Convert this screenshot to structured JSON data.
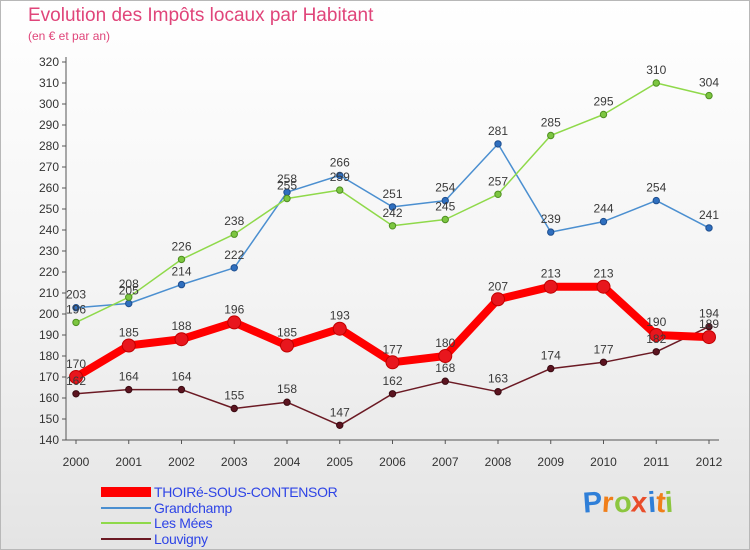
{
  "chart_data": {
    "type": "line",
    "title": "Evolution des Impôts locaux par Habitant",
    "subtitle": "(en € et par an)",
    "x": [
      "2000",
      "2001",
      "2002",
      "2003",
      "2004",
      "2005",
      "2006",
      "2007",
      "2008",
      "2009",
      "2010",
      "2011",
      "2012"
    ],
    "ylim": [
      140,
      320
    ],
    "yticks": [
      140,
      150,
      160,
      170,
      180,
      190,
      200,
      210,
      220,
      230,
      240,
      250,
      260,
      270,
      280,
      290,
      300,
      310,
      320
    ],
    "grid": false,
    "legend_position": "bottom-left",
    "series": [
      {
        "name": "THOIRé-SOUS-CONTENSOR",
        "color": "#ff0000",
        "values": [
          170,
          185,
          188,
          196,
          185,
          193,
          177,
          180,
          207,
          213,
          213,
          190,
          189
        ]
      },
      {
        "name": "Grandchamp",
        "color": "#4b8fd0",
        "values": [
          203,
          205,
          214,
          222,
          258,
          266,
          251,
          254,
          281,
          239,
          244,
          254,
          241
        ]
      },
      {
        "name": "Les Mées",
        "color": "#8fd94a",
        "values": [
          196,
          208,
          226,
          238,
          255,
          259,
          242,
          245,
          257,
          285,
          295,
          310,
          304
        ]
      },
      {
        "name": "Louvigny",
        "color": "#6b1a24",
        "values": [
          162,
          164,
          164,
          155,
          158,
          147,
          162,
          168,
          163,
          174,
          177,
          182,
          194
        ]
      }
    ]
  },
  "logo": {
    "text": "Proxiti",
    "letter_colors": [
      "#2f7fd8",
      "#f07f1a",
      "#8cc63f",
      "#e94d2a",
      "#2f7fd8",
      "#f07f1a",
      "#8cc63f"
    ]
  }
}
